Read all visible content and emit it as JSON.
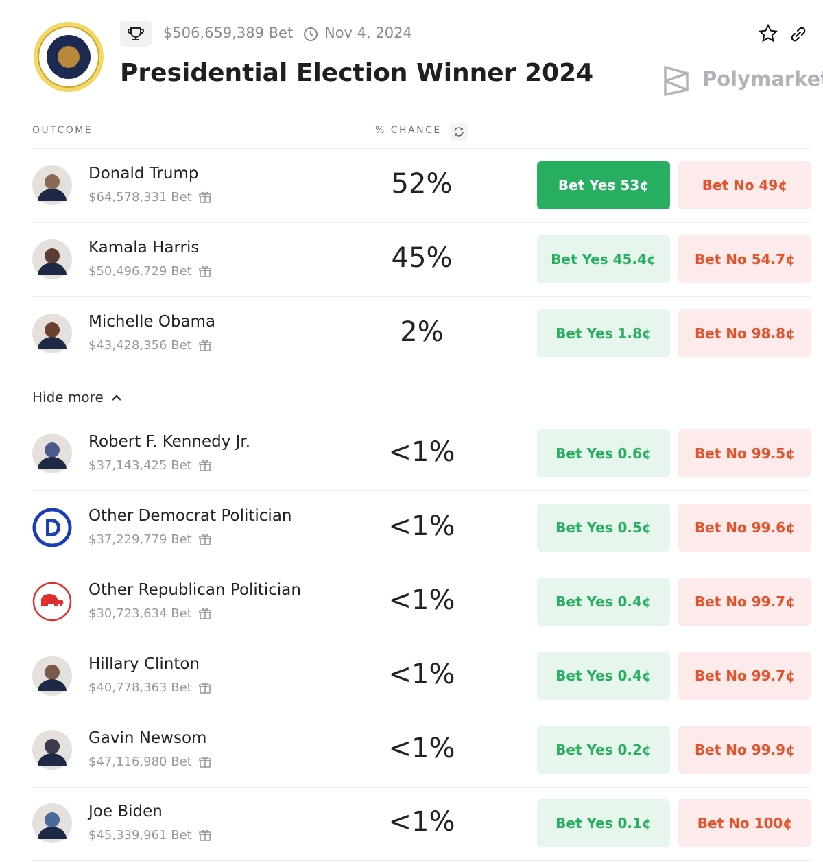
{
  "header": {
    "volume": "$506,659,389 Bet",
    "date": "Nov 4, 2024",
    "title": "Presidential Election Winner 2024",
    "brand": "Polymarket"
  },
  "table": {
    "columns": [
      "OUTCOME",
      "% CHANCE"
    ],
    "toggle": "Hide more",
    "rows": [
      {
        "name": "Donald Trump",
        "volume": "$64,578,331 Bet",
        "chance": "52%",
        "yes": "Bet Yes 53¢",
        "no": "Bet No 49¢"
      },
      {
        "name": "Kamala Harris",
        "volume": "$50,496,729 Bet",
        "chance": "45%",
        "yes": "Bet Yes 45.4¢",
        "no": "Bet No 54.7¢"
      },
      {
        "name": "Michelle Obama",
        "volume": "$43,428,356 Bet",
        "chance": "2%",
        "yes": "Bet Yes 1.8¢",
        "no": "Bet No 98.8¢"
      },
      {
        "name": "Robert F. Kennedy Jr.",
        "volume": "$37,143,425 Bet",
        "chance": "<1%",
        "yes": "Bet Yes 0.6¢",
        "no": "Bet No 99.5¢"
      },
      {
        "name": "Other Democrat Politician",
        "volume": "$37,229,779 Bet",
        "chance": "<1%",
        "yes": "Bet Yes 0.5¢",
        "no": "Bet No 99.6¢"
      },
      {
        "name": "Other Republican Politician",
        "volume": "$30,723,634 Bet",
        "chance": "<1%",
        "yes": "Bet Yes 0.4¢",
        "no": "Bet No 99.7¢"
      },
      {
        "name": "Hillary Clinton",
        "volume": "$40,778,363 Bet",
        "chance": "<1%",
        "yes": "Bet Yes 0.4¢",
        "no": "Bet No 99.7¢"
      },
      {
        "name": "Gavin Newsom",
        "volume": "$47,116,980 Bet",
        "chance": "<1%",
        "yes": "Bet Yes 0.2¢",
        "no": "Bet No 99.9¢"
      },
      {
        "name": "Joe Biden",
        "volume": "$45,339,961 Bet",
        "chance": "<1%",
        "yes": "Bet Yes 0.1¢",
        "no": "Bet No 100¢"
      }
    ]
  }
}
